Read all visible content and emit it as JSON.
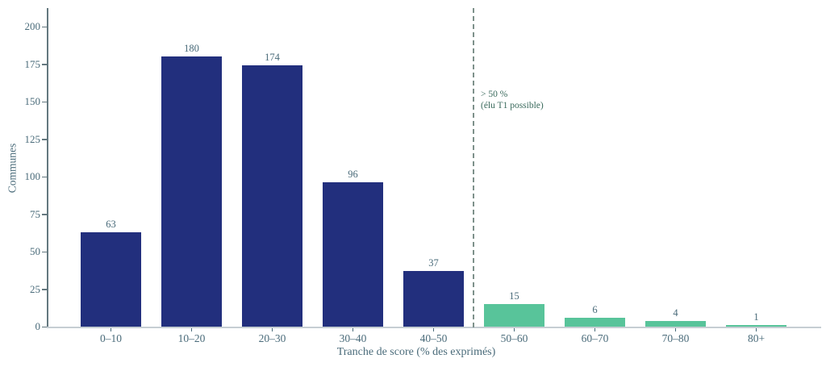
{
  "chart_data": {
    "type": "bar",
    "title": "",
    "xlabel": "Tranche de score (% des exprimés)",
    "ylabel": "Communes",
    "categories": [
      "0–10",
      "10–20",
      "20–30",
      "30–40",
      "40–50",
      "50–60",
      "60–70",
      "70–80",
      "80+"
    ],
    "values": [
      63,
      180,
      174,
      96,
      37,
      15,
      6,
      4,
      1
    ],
    "bar_colors": [
      "navy",
      "navy",
      "navy",
      "navy",
      "navy",
      "green",
      "green",
      "green",
      "green"
    ],
    "colors": {
      "navy": "#222f7d",
      "green": "#58c49a",
      "tick_text": "#4a6b7a",
      "annotation_text": "#3a6a5c",
      "threshold_line": "#7e918b",
      "y_spine": "#64787f",
      "x_spine": "#c6ced3"
    },
    "yticks": [
      0,
      25,
      50,
      75,
      100,
      125,
      150,
      175,
      200
    ],
    "ylim": [
      0,
      212
    ],
    "grid": false,
    "legend": null,
    "annotation": {
      "line1": "> 50 %",
      "line2": "(élu T1 possible)",
      "threshold_x_value": 50
    }
  }
}
